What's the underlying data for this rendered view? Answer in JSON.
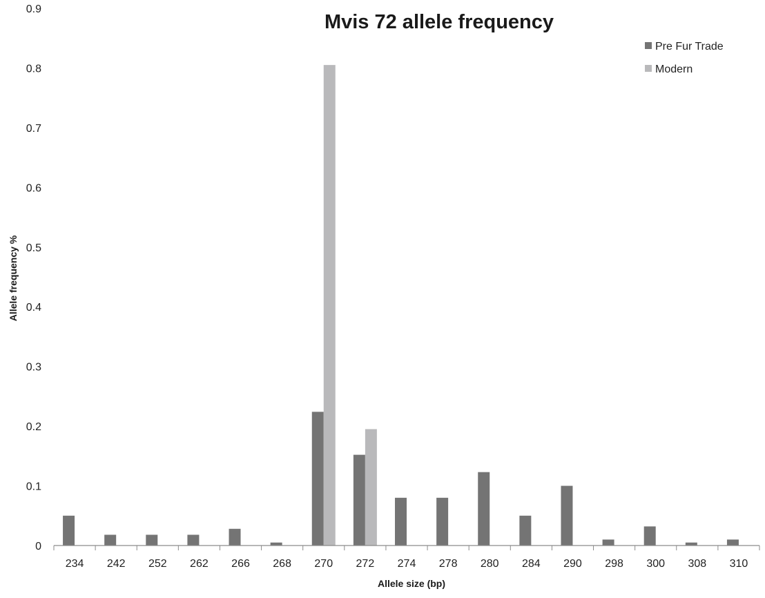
{
  "chart_data": {
    "type": "bar",
    "title": "Mvis 72 allele frequency",
    "xlabel": "Allele size (bp)",
    "ylabel": "Allele frequency %",
    "ylim": [
      0,
      0.9
    ],
    "yticks": [
      "0",
      "0.1",
      "0.2",
      "0.3",
      "0.4",
      "0.5",
      "0.6",
      "0.7",
      "0.8",
      "0.9"
    ],
    "categories": [
      "234",
      "242",
      "252",
      "262",
      "266",
      "268",
      "270",
      "272",
      "274",
      "278",
      "280",
      "284",
      "290",
      "298",
      "300",
      "308",
      "310"
    ],
    "series": [
      {
        "name": "Pre Fur Trade",
        "color": "#747474",
        "values": [
          0.05,
          0.018,
          0.018,
          0.018,
          0.028,
          0.005,
          0.224,
          0.152,
          0.08,
          0.08,
          0.123,
          0.05,
          0.1,
          0.01,
          0.032,
          0.005,
          0.01
        ]
      },
      {
        "name": "Modern",
        "color": "#b9b9bb",
        "values": [
          0,
          0,
          0,
          0,
          0,
          0,
          0.805,
          0.195,
          0,
          0,
          0,
          0,
          0,
          0,
          0,
          0,
          0
        ]
      }
    ],
    "grid": false,
    "legend_position": "top-right"
  }
}
